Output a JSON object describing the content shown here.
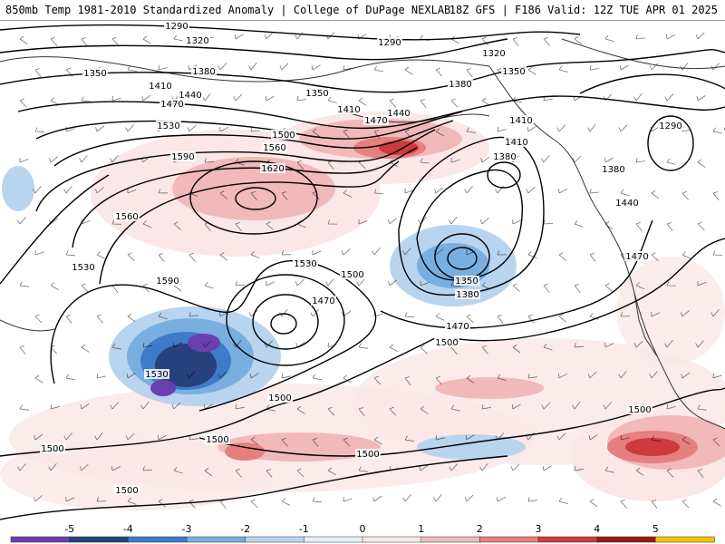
{
  "header": {
    "title_left": "850mb Temp 1981-2010 Standardized Anomaly | College of DuPage NEXLAB",
    "title_right": "18Z GFS | F186 Valid: 12Z TUE APR 01 2025"
  },
  "contour_labels": [
    "1290",
    "1320",
    "1290",
    "1320",
    "1350",
    "1350",
    "1380",
    "1350",
    "1380",
    "1410",
    "1410",
    "1440",
    "1440",
    "1470",
    "1470",
    "1410",
    "1410",
    "1530",
    "1500",
    "1560",
    "1380",
    "1590",
    "1620",
    "1380",
    "1560",
    "1440",
    "1530",
    "1470",
    "1590",
    "1530",
    "1500",
    "1470",
    "1350",
    "1380",
    "1530",
    "1500",
    "1470",
    "1500",
    "1500",
    "1500",
    "1500",
    "1500",
    "1500",
    "1290"
  ],
  "colorbar": {
    "ticks": [
      "-5",
      "-4",
      "-3",
      "-2",
      "-1",
      "0",
      "1",
      "2",
      "3",
      "4",
      "5"
    ],
    "colors": [
      "#6a3fb0",
      "#27407e",
      "#3f7cc8",
      "#79aee0",
      "#b9d4ee",
      "#e8eef7",
      "#fbe7e7",
      "#f2b9b9",
      "#e57f80",
      "#cf3a3c",
      "#9b1616",
      "#f2c400"
    ]
  }
}
